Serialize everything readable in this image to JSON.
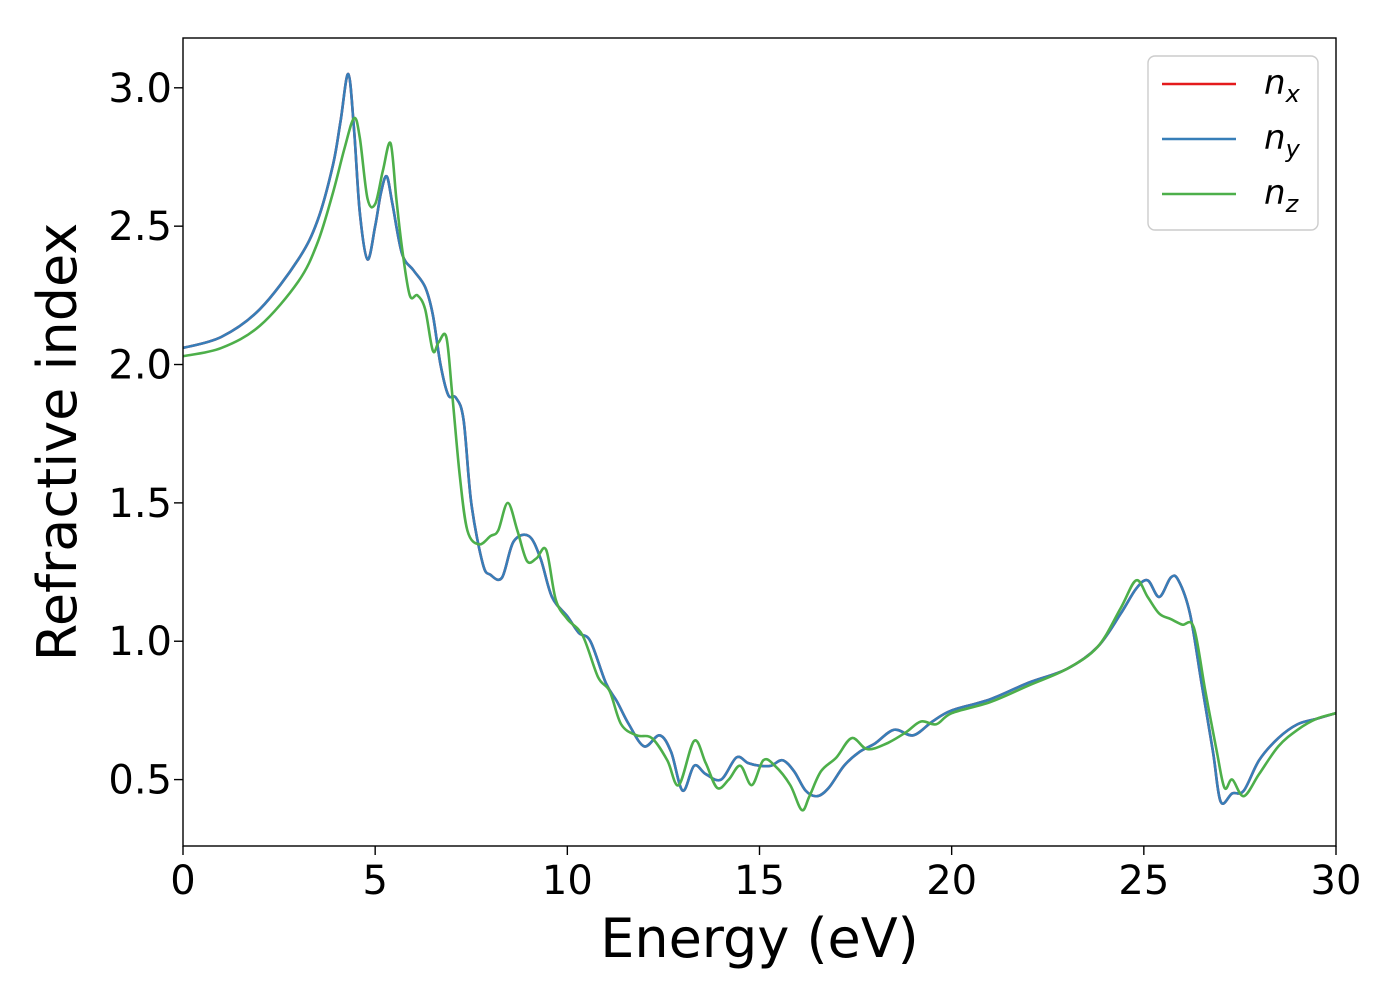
{
  "chart_data": {
    "type": "line",
    "xlabel": "Energy (eV)",
    "ylabel": "Refractive index",
    "xlim": [
      0,
      30
    ],
    "ylim": [
      0.26,
      3.18
    ],
    "xticks": [
      0,
      5,
      10,
      15,
      20,
      25,
      30
    ],
    "xtick_labels": [
      "0",
      "5",
      "10",
      "15",
      "20",
      "25",
      "30"
    ],
    "yticks": [
      0.5,
      1.0,
      1.5,
      2.0,
      2.5,
      3.0
    ],
    "ytick_labels": [
      "0.5",
      "1.0",
      "1.5",
      "2.0",
      "2.5",
      "3.0"
    ],
    "grid": false,
    "legend_position": "top-right",
    "series": [
      {
        "name": "n_x",
        "legend_base": "n",
        "legend_sub": "x",
        "color": "#e41a1c",
        "x": [
          0,
          1,
          2,
          3,
          3.5,
          3.9,
          4.1,
          4.3,
          4.45,
          4.6,
          4.8,
          5.0,
          5.15,
          5.3,
          5.45,
          5.7,
          6.0,
          6.3,
          6.5,
          6.7,
          6.9,
          7.1,
          7.3,
          7.5,
          7.8,
          8.0,
          8.3,
          8.6,
          9.0,
          9.3,
          9.6,
          10.0,
          10.3,
          10.6,
          11.0,
          11.3,
          11.6,
          12.0,
          12.4,
          12.7,
          13.0,
          13.3,
          13.6,
          14.0,
          14.4,
          14.7,
          15.0,
          15.3,
          15.6,
          15.9,
          16.2,
          16.5,
          16.8,
          17.2,
          17.6,
          18.0,
          18.5,
          19.0,
          19.5,
          20.0,
          21.0,
          22.0,
          23.0,
          23.8,
          24.4,
          24.8,
          25.1,
          25.4,
          25.7,
          25.9,
          26.2,
          26.5,
          26.8,
          27.0,
          27.3,
          27.6,
          28.0,
          28.5,
          29.0,
          29.5,
          30.0
        ],
        "y": [
          2.06,
          2.1,
          2.2,
          2.38,
          2.52,
          2.72,
          2.88,
          3.05,
          2.85,
          2.55,
          2.38,
          2.5,
          2.62,
          2.68,
          2.58,
          2.4,
          2.34,
          2.28,
          2.18,
          2.0,
          1.89,
          1.88,
          1.8,
          1.5,
          1.28,
          1.24,
          1.23,
          1.36,
          1.38,
          1.3,
          1.16,
          1.09,
          1.03,
          1.0,
          0.85,
          0.78,
          0.7,
          0.62,
          0.66,
          0.6,
          0.46,
          0.55,
          0.52,
          0.5,
          0.58,
          0.56,
          0.55,
          0.55,
          0.57,
          0.53,
          0.46,
          0.44,
          0.47,
          0.55,
          0.6,
          0.63,
          0.68,
          0.66,
          0.71,
          0.75,
          0.79,
          0.85,
          0.9,
          0.98,
          1.1,
          1.19,
          1.22,
          1.16,
          1.23,
          1.22,
          1.1,
          0.85,
          0.6,
          0.42,
          0.45,
          0.46,
          0.57,
          0.65,
          0.7,
          0.72,
          0.74
        ]
      },
      {
        "name": "n_y",
        "legend_base": "n",
        "legend_sub": "y",
        "color": "#377eb8",
        "x": [
          0,
          1,
          2,
          3,
          3.5,
          3.9,
          4.1,
          4.3,
          4.45,
          4.6,
          4.8,
          5.0,
          5.15,
          5.3,
          5.45,
          5.7,
          6.0,
          6.3,
          6.5,
          6.7,
          6.9,
          7.1,
          7.3,
          7.5,
          7.8,
          8.0,
          8.3,
          8.6,
          9.0,
          9.3,
          9.6,
          10.0,
          10.3,
          10.6,
          11.0,
          11.3,
          11.6,
          12.0,
          12.4,
          12.7,
          13.0,
          13.3,
          13.6,
          14.0,
          14.4,
          14.7,
          15.0,
          15.3,
          15.6,
          15.9,
          16.2,
          16.5,
          16.8,
          17.2,
          17.6,
          18.0,
          18.5,
          19.0,
          19.5,
          20.0,
          21.0,
          22.0,
          23.0,
          23.8,
          24.4,
          24.8,
          25.1,
          25.4,
          25.7,
          25.9,
          26.2,
          26.5,
          26.8,
          27.0,
          27.3,
          27.6,
          28.0,
          28.5,
          29.0,
          29.5,
          30.0
        ],
        "y": [
          2.06,
          2.1,
          2.2,
          2.38,
          2.52,
          2.72,
          2.88,
          3.05,
          2.85,
          2.55,
          2.38,
          2.5,
          2.62,
          2.68,
          2.58,
          2.4,
          2.34,
          2.28,
          2.18,
          2.0,
          1.89,
          1.88,
          1.8,
          1.5,
          1.28,
          1.24,
          1.23,
          1.36,
          1.38,
          1.3,
          1.16,
          1.09,
          1.03,
          1.0,
          0.85,
          0.78,
          0.7,
          0.62,
          0.66,
          0.6,
          0.46,
          0.55,
          0.52,
          0.5,
          0.58,
          0.56,
          0.55,
          0.55,
          0.57,
          0.53,
          0.46,
          0.44,
          0.47,
          0.55,
          0.6,
          0.63,
          0.68,
          0.66,
          0.71,
          0.75,
          0.79,
          0.85,
          0.9,
          0.98,
          1.1,
          1.19,
          1.22,
          1.16,
          1.23,
          1.22,
          1.1,
          0.85,
          0.6,
          0.42,
          0.45,
          0.46,
          0.57,
          0.65,
          0.7,
          0.72,
          0.74
        ]
      },
      {
        "name": "n_z",
        "legend_base": "n",
        "legend_sub": "z",
        "color": "#4daf4a",
        "x": [
          0,
          1,
          2,
          3,
          3.5,
          3.9,
          4.2,
          4.45,
          4.6,
          4.8,
          5.0,
          5.2,
          5.4,
          5.55,
          5.7,
          5.9,
          6.1,
          6.3,
          6.5,
          6.65,
          6.85,
          7.0,
          7.2,
          7.4,
          7.7,
          8.0,
          8.2,
          8.45,
          8.7,
          8.95,
          9.2,
          9.45,
          9.7,
          10.0,
          10.4,
          10.8,
          11.1,
          11.4,
          11.8,
          12.2,
          12.6,
          12.9,
          13.3,
          13.6,
          13.9,
          14.2,
          14.5,
          14.8,
          15.1,
          15.4,
          15.8,
          16.1,
          16.3,
          16.6,
          17.0,
          17.4,
          17.8,
          18.3,
          18.8,
          19.2,
          19.6,
          20.0,
          21.0,
          22.0,
          23.0,
          23.8,
          24.4,
          24.8,
          25.1,
          25.4,
          25.7,
          26.0,
          26.3,
          26.6,
          26.9,
          27.1,
          27.3,
          27.6,
          28.0,
          28.5,
          29.0,
          29.5,
          30.0
        ],
        "y": [
          2.03,
          2.06,
          2.14,
          2.3,
          2.44,
          2.62,
          2.78,
          2.89,
          2.82,
          2.6,
          2.58,
          2.7,
          2.8,
          2.6,
          2.42,
          2.25,
          2.25,
          2.2,
          2.05,
          2.08,
          2.1,
          1.9,
          1.6,
          1.4,
          1.35,
          1.38,
          1.4,
          1.5,
          1.4,
          1.29,
          1.3,
          1.33,
          1.15,
          1.08,
          1.02,
          0.87,
          0.82,
          0.7,
          0.66,
          0.65,
          0.57,
          0.48,
          0.64,
          0.56,
          0.47,
          0.5,
          0.55,
          0.48,
          0.57,
          0.55,
          0.48,
          0.39,
          0.44,
          0.53,
          0.58,
          0.65,
          0.61,
          0.63,
          0.67,
          0.71,
          0.7,
          0.74,
          0.78,
          0.84,
          0.9,
          0.98,
          1.12,
          1.22,
          1.16,
          1.1,
          1.08,
          1.06,
          1.05,
          0.82,
          0.6,
          0.47,
          0.5,
          0.44,
          0.52,
          0.62,
          0.68,
          0.72,
          0.74
        ]
      }
    ]
  }
}
